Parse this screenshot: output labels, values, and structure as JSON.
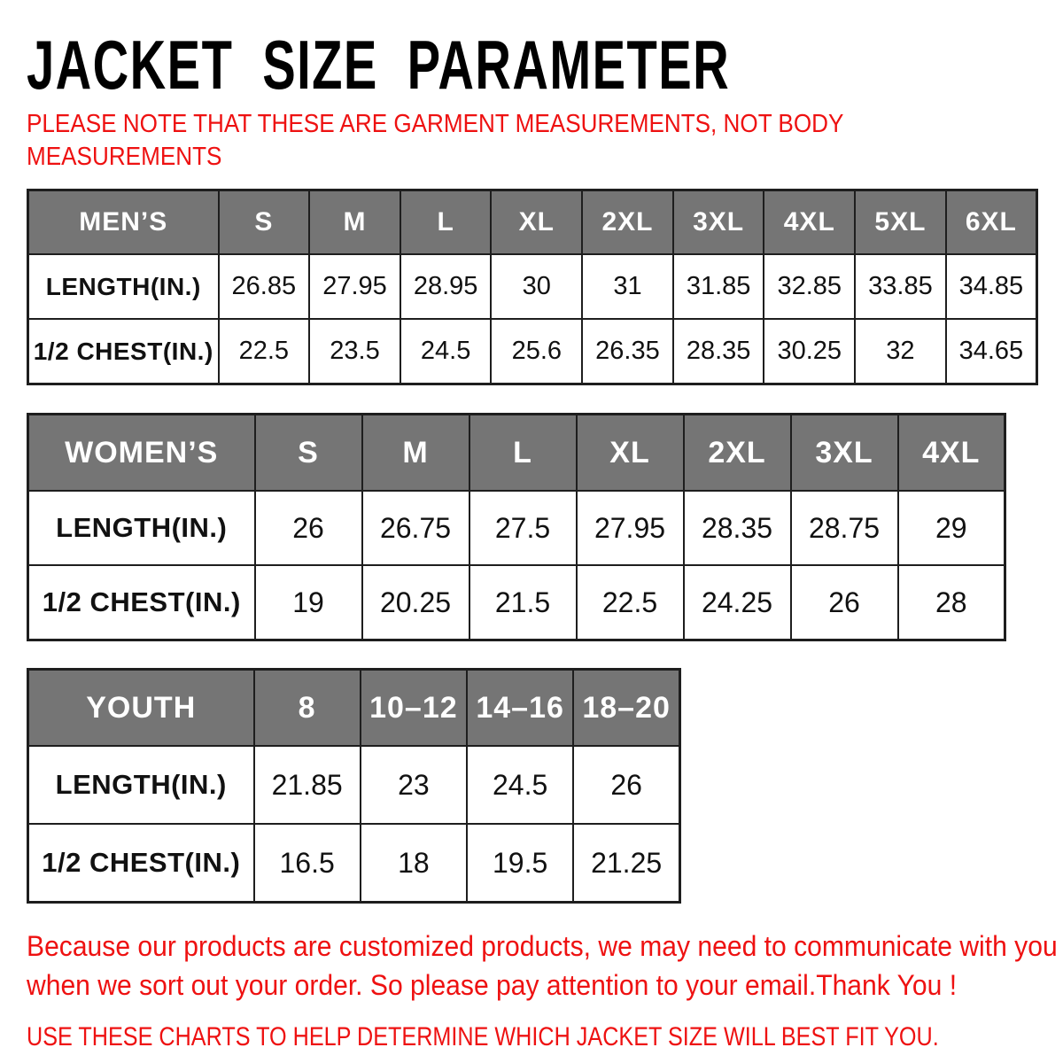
{
  "header": {
    "title": "JACKET SIZE PARAMETER",
    "note_lines": [
      "PLEASE NOTE THAT THESE ARE GARMENT MEASUREMENTS, NOT BODY",
      "MEASUREMENTS"
    ]
  },
  "colors": {
    "accent_red": "#ee1111",
    "table_header_bg": "#757575",
    "table_header_text": "#ffffff",
    "table_border": "#1e1e1e",
    "title_color": "#000000",
    "background": "#ffffff"
  },
  "tables": [
    {
      "id": "mens",
      "category_label": "MEN’S",
      "header": [
        "MEN’S",
        "S",
        "M",
        "L",
        "XL",
        "2XL",
        "3XL",
        "4XL",
        "5XL",
        "6XL"
      ],
      "rows": [
        {
          "label": "LENGTH(IN.)",
          "values": [
            "26.85",
            "27.95",
            "28.95",
            "30",
            "31",
            "31.85",
            "32.85",
            "33.85",
            "34.85"
          ]
        },
        {
          "label": "1/2 CHEST(IN.)",
          "values": [
            "22.5",
            "23.5",
            "24.5",
            "25.6",
            "26.35",
            "28.35",
            "30.25",
            "32",
            "34.65"
          ]
        }
      ]
    },
    {
      "id": "womens",
      "category_label": "WOMEN’S",
      "header": [
        "WOMEN’S",
        "S",
        "M",
        "L",
        "XL",
        "2XL",
        "3XL",
        "4XL"
      ],
      "rows": [
        {
          "label": "LENGTH(IN.)",
          "values": [
            "26",
            "26.75",
            "27.5",
            "27.95",
            "28.35",
            "28.75",
            "29"
          ]
        },
        {
          "label": "1/2 CHEST(IN.)",
          "values": [
            "19",
            "20.25",
            "21.5",
            "22.5",
            "24.25",
            "26",
            "28"
          ]
        }
      ]
    },
    {
      "id": "youth",
      "category_label": "YOUTH",
      "header": [
        "YOUTH",
        "8",
        "10–12",
        "14–16",
        "18–20"
      ],
      "rows": [
        {
          "label": "LENGTH(IN.)",
          "values": [
            "21.85",
            "23",
            "24.5",
            "26"
          ]
        },
        {
          "label": "1/2 CHEST(IN.)",
          "values": [
            "16.5",
            "18",
            "19.5",
            "21.25"
          ]
        }
      ]
    }
  ],
  "footer": {
    "notice_lines": [
      "Because our products are customized products, we may need to communicate with you",
      "when we sort out your order. So please pay attention to your email.Thank You !"
    ],
    "instruction": "USE THESE CHARTS TO HELP DETERMINE WHICH JACKET SIZE WILL BEST FIT YOU."
  }
}
